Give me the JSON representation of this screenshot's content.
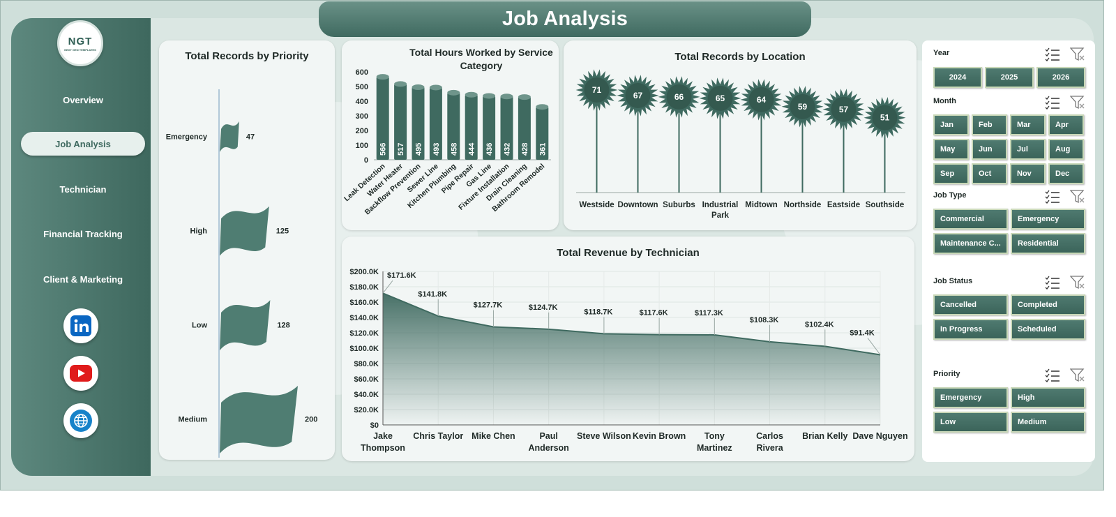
{
  "page": {
    "title": "Job Analysis"
  },
  "logo": {
    "text": "NGT",
    "subtext": "NEXT GEN TEMPLATES"
  },
  "nav": {
    "items": [
      {
        "label": "Overview",
        "active": false
      },
      {
        "label": "Job Analysis",
        "active": true
      },
      {
        "label": "Technician",
        "active": false
      },
      {
        "label": "Financial Tracking",
        "active": false
      },
      {
        "label": "Client & Marketing",
        "active": false
      }
    ]
  },
  "social": [
    {
      "icon": "linkedin-icon"
    },
    {
      "icon": "youtube-icon"
    },
    {
      "icon": "globe-icon"
    }
  ],
  "colors": {
    "primary": "#3f6a60",
    "card": "#f2f6f5",
    "accent_border": "#c9d8b8"
  },
  "chart_data": [
    {
      "id": "priority",
      "type": "bar",
      "title": "Total Records by Priority",
      "categories": [
        "Emergency",
        "High",
        "Low",
        "Medium"
      ],
      "values": [
        47,
        125,
        128,
        200
      ],
      "value_labels": [
        "47",
        "125",
        "128",
        "200"
      ]
    },
    {
      "id": "hours",
      "type": "bar",
      "title": "Total Hours Worked by Service Category",
      "categories": [
        "Leak Detection",
        "Water Heater",
        "Backflow Prevention",
        "Sewer Line",
        "Kitchen Plumbing",
        "Pipe Repair",
        "Gas Line",
        "Fixture Installation",
        "Drain Cleaning",
        "Bathroom Remodel"
      ],
      "values": [
        566,
        517,
        495,
        493,
        458,
        444,
        436,
        432,
        428,
        361
      ],
      "value_labels": [
        "566",
        "517",
        "495",
        "493",
        "458",
        "444",
        "436",
        "432",
        "428",
        "361"
      ],
      "yticks": [
        "0",
        "100",
        "200",
        "300",
        "400",
        "500",
        "600"
      ],
      "ylim": [
        0,
        600
      ]
    },
    {
      "id": "location",
      "type": "bar",
      "title": "Total Records by Location",
      "categories": [
        "Westside",
        "Downtown",
        "Suburbs",
        "Industrial Park",
        "Midtown",
        "Northside",
        "Eastside",
        "Southside"
      ],
      "values": [
        71,
        67,
        66,
        65,
        64,
        59,
        57,
        51
      ],
      "value_labels": [
        "71",
        "67",
        "66",
        "65",
        "64",
        "59",
        "57",
        "51"
      ]
    },
    {
      "id": "revenue",
      "type": "area",
      "title": "Total Revenue by Technician",
      "categories": [
        "Jake Thompson",
        "Chris Taylor",
        "Mike Chen",
        "Paul Anderson",
        "Steve Wilson",
        "Kevin Brown",
        "Tony Martinez",
        "Carlos Rivera",
        "Brian Kelly",
        "Dave Nguyen"
      ],
      "values": [
        171600,
        141800,
        127700,
        124700,
        118700,
        117600,
        117300,
        108300,
        102400,
        91400
      ],
      "value_labels": [
        "$171.6K",
        "$141.8K",
        "$127.7K",
        "$124.7K",
        "$118.7K",
        "$117.6K",
        "$117.3K",
        "$108.3K",
        "$102.4K",
        "$91.4K"
      ],
      "yticks": [
        "$0",
        "$20.0K",
        "$40.0K",
        "$60.0K",
        "$80.0K",
        "$100.0K",
        "$120.0K",
        "$140.0K",
        "$160.0K",
        "$180.0K",
        "$200.0K"
      ],
      "ylim": [
        0,
        200000
      ],
      "grid": true
    }
  ],
  "filters": [
    {
      "title": "Year",
      "buttons": [
        "2024",
        "2025",
        "2026"
      ]
    },
    {
      "title": "Month",
      "buttons": [
        "Jan",
        "Feb",
        "Mar",
        "Apr",
        "May",
        "Jun",
        "Jul",
        "Aug",
        "Sep",
        "Oct",
        "Nov",
        "Dec"
      ]
    },
    {
      "title": "Job Type",
      "buttons": [
        "Commercial",
        "Emergency",
        "Maintenance C...",
        "Residential"
      ]
    },
    {
      "title": "Job Status",
      "buttons": [
        "Cancelled",
        "Completed",
        "In Progress",
        "Scheduled"
      ]
    },
    {
      "title": "Priority",
      "buttons": [
        "Emergency",
        "High",
        "Low",
        "Medium"
      ]
    }
  ]
}
